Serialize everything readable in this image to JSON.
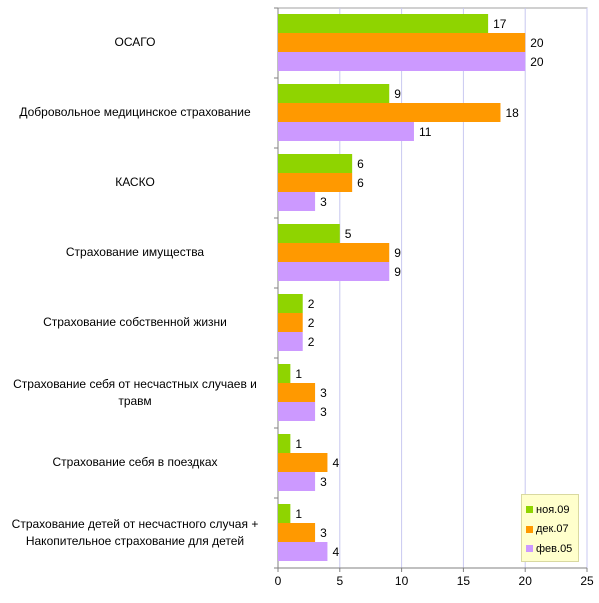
{
  "chart_data": {
    "type": "bar",
    "orientation": "horizontal",
    "categories": [
      "ОСАГО",
      "Добровольное медицинское страхование",
      "КАСКО",
      "Страхование имущества",
      "Страхование собственной жизни",
      "Страхование себя от несчастных случаев и травм",
      "Страхование себя в поездках",
      "Страхование детей от несчастного случая + Накопительное страхование для детей"
    ],
    "series": [
      {
        "name": "ноя.09",
        "color": "#8fd400",
        "values": [
          17,
          9,
          6,
          5,
          2,
          1,
          1,
          1
        ]
      },
      {
        "name": "дек.07",
        "color": "#ff9900",
        "values": [
          20,
          18,
          6,
          9,
          2,
          3,
          4,
          3
        ]
      },
      {
        "name": "фев.05",
        "color": "#cc99ff",
        "values": [
          20,
          11,
          3,
          9,
          2,
          3,
          3,
          4
        ]
      }
    ],
    "xlim": [
      0,
      25
    ],
    "xticks": [
      0,
      5,
      10,
      15,
      20,
      25
    ],
    "grid": true,
    "legend": "bottom-right",
    "data_labels": true
  }
}
